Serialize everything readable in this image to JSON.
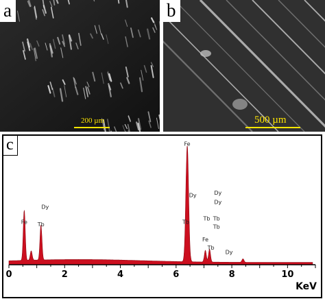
{
  "panels": {
    "a": {
      "letter": "a",
      "scale_text": "200 µm"
    },
    "b": {
      "letter": "b",
      "scale_text": "500 µm"
    },
    "c": {
      "letter": "c"
    }
  },
  "colors": {
    "spectrum_fill": "#cc0f1f",
    "scale_bar": "#ffe600"
  },
  "chart_data": {
    "type": "area",
    "xlabel": "KeV",
    "xlim": [
      0,
      11
    ],
    "x_ticks": [
      0,
      2,
      4,
      6,
      8,
      10
    ],
    "y_ticks": [],
    "grid": false,
    "peaks": [
      {
        "x": 0.55,
        "y": 0.43
      },
      {
        "x": 0.8,
        "y": 0.08
      },
      {
        "x": 1.15,
        "y": 0.3
      },
      {
        "x": 6.4,
        "y": 1.0
      },
      {
        "x": 7.05,
        "y": 0.1
      },
      {
        "x": 7.2,
        "y": 0.11
      },
      {
        "x": 8.4,
        "y": 0.03
      }
    ],
    "annotations": [
      {
        "text": "Fe",
        "x": 6.4,
        "y": 1.02
      },
      {
        "text": "Dy",
        "x": 1.3,
        "y": 0.48
      },
      {
        "text": "Fe",
        "x": 0.55,
        "y": 0.35
      },
      {
        "text": "Tb",
        "x": 1.15,
        "y": 0.33
      },
      {
        "text": "Dy",
        "x": 6.6,
        "y": 0.58
      },
      {
        "text": "Dy",
        "x": 7.5,
        "y": 0.6
      },
      {
        "text": "Dy",
        "x": 7.5,
        "y": 0.52
      },
      {
        "text": "Tb",
        "x": 6.35,
        "y": 0.35
      },
      {
        "text": "Tb",
        "x": 7.1,
        "y": 0.38
      },
      {
        "text": "Tb",
        "x": 7.45,
        "y": 0.38
      },
      {
        "text": "Tb",
        "x": 7.45,
        "y": 0.31
      },
      {
        "text": "Fe",
        "x": 7.05,
        "y": 0.2
      },
      {
        "text": "Tb",
        "x": 7.25,
        "y": 0.13
      },
      {
        "text": "Dy",
        "x": 7.9,
        "y": 0.09
      }
    ]
  }
}
